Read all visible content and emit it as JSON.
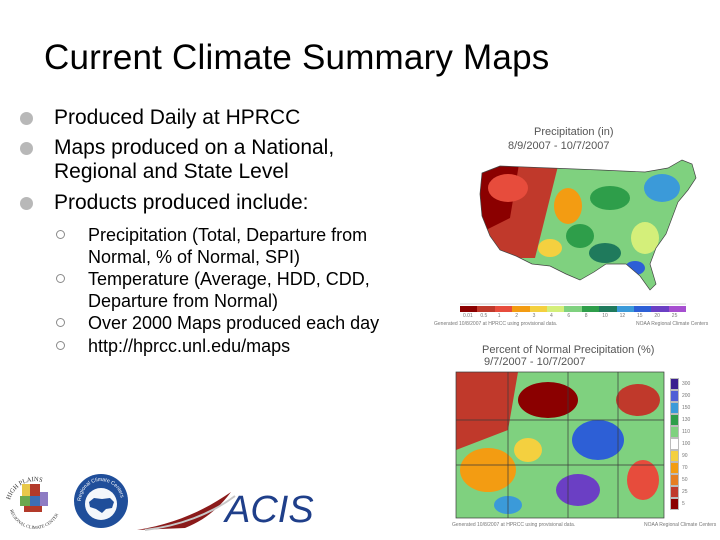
{
  "slide": {
    "title": "Current Climate Summary Maps",
    "bullets": [
      {
        "text": "Produced Daily at HPRCC"
      },
      {
        "text": "Maps produced on a National, Regional and State Level"
      },
      {
        "text": "Products produced include:",
        "sub": [
          "Precipitation (Total, Departure from Normal, % of Normal, SPI)",
          "Temperature (Average, HDD, CDD, Departure from Normal)",
          "Over 2000 Maps produced each day",
          "http://hprcc.unl.edu/maps"
        ]
      }
    ]
  },
  "maps": {
    "precip": {
      "title": "Precipitation (in)",
      "dates": "8/9/2007 - 10/7/2007",
      "footer_left": "Generated 10/8/2007 at HPRCC using provisional data.",
      "footer_right": "NOAA Regional Climate Centers",
      "scale": [
        "0.01",
        "0.5",
        "1",
        "2",
        "3",
        "4",
        "6",
        "8",
        "10",
        "12",
        "15",
        "20",
        "25"
      ],
      "scale_colors": [
        "#8b0000",
        "#c0392b",
        "#e74c3c",
        "#f39c12",
        "#f4d03f",
        "#d4ef7a",
        "#7fd17f",
        "#2e9e4a",
        "#1f7a5c",
        "#3b9ad9",
        "#2d5fd6",
        "#6b3fc4",
        "#a64fd0"
      ]
    },
    "pct": {
      "title": "Percent of Normal Precipitation (%)",
      "dates": "9/7/2007 - 10/7/2007",
      "footer_left": "Generated 10/8/2007 at HPRCC using provisional data.",
      "footer_right": "NOAA Regional Climate Centers",
      "scale": [
        "300",
        "200",
        "150",
        "130",
        "110",
        "100",
        "90",
        "70",
        "50",
        "25",
        "5"
      ],
      "scale_colors": [
        "#3b1f8f",
        "#4f5fd6",
        "#3b9ad9",
        "#2e9e4a",
        "#7fd17f",
        "#ffffff",
        "#f4d03f",
        "#f39c12",
        "#e67e22",
        "#c0392b",
        "#8b0000"
      ]
    }
  },
  "logos": {
    "hprcc": {
      "top_text": "HIGH PLAINS",
      "bottom_text": "REGIONAL CLIMATE CENTER"
    },
    "rcc": {
      "ring_text": "Regional Climate Centers"
    },
    "acis": {
      "text": "ACIS"
    }
  },
  "colors": {
    "bullet_dot": "#b8b8b8",
    "acis_blue": "#1f3f8a",
    "acis_swoosh": "#8b1a1a"
  }
}
